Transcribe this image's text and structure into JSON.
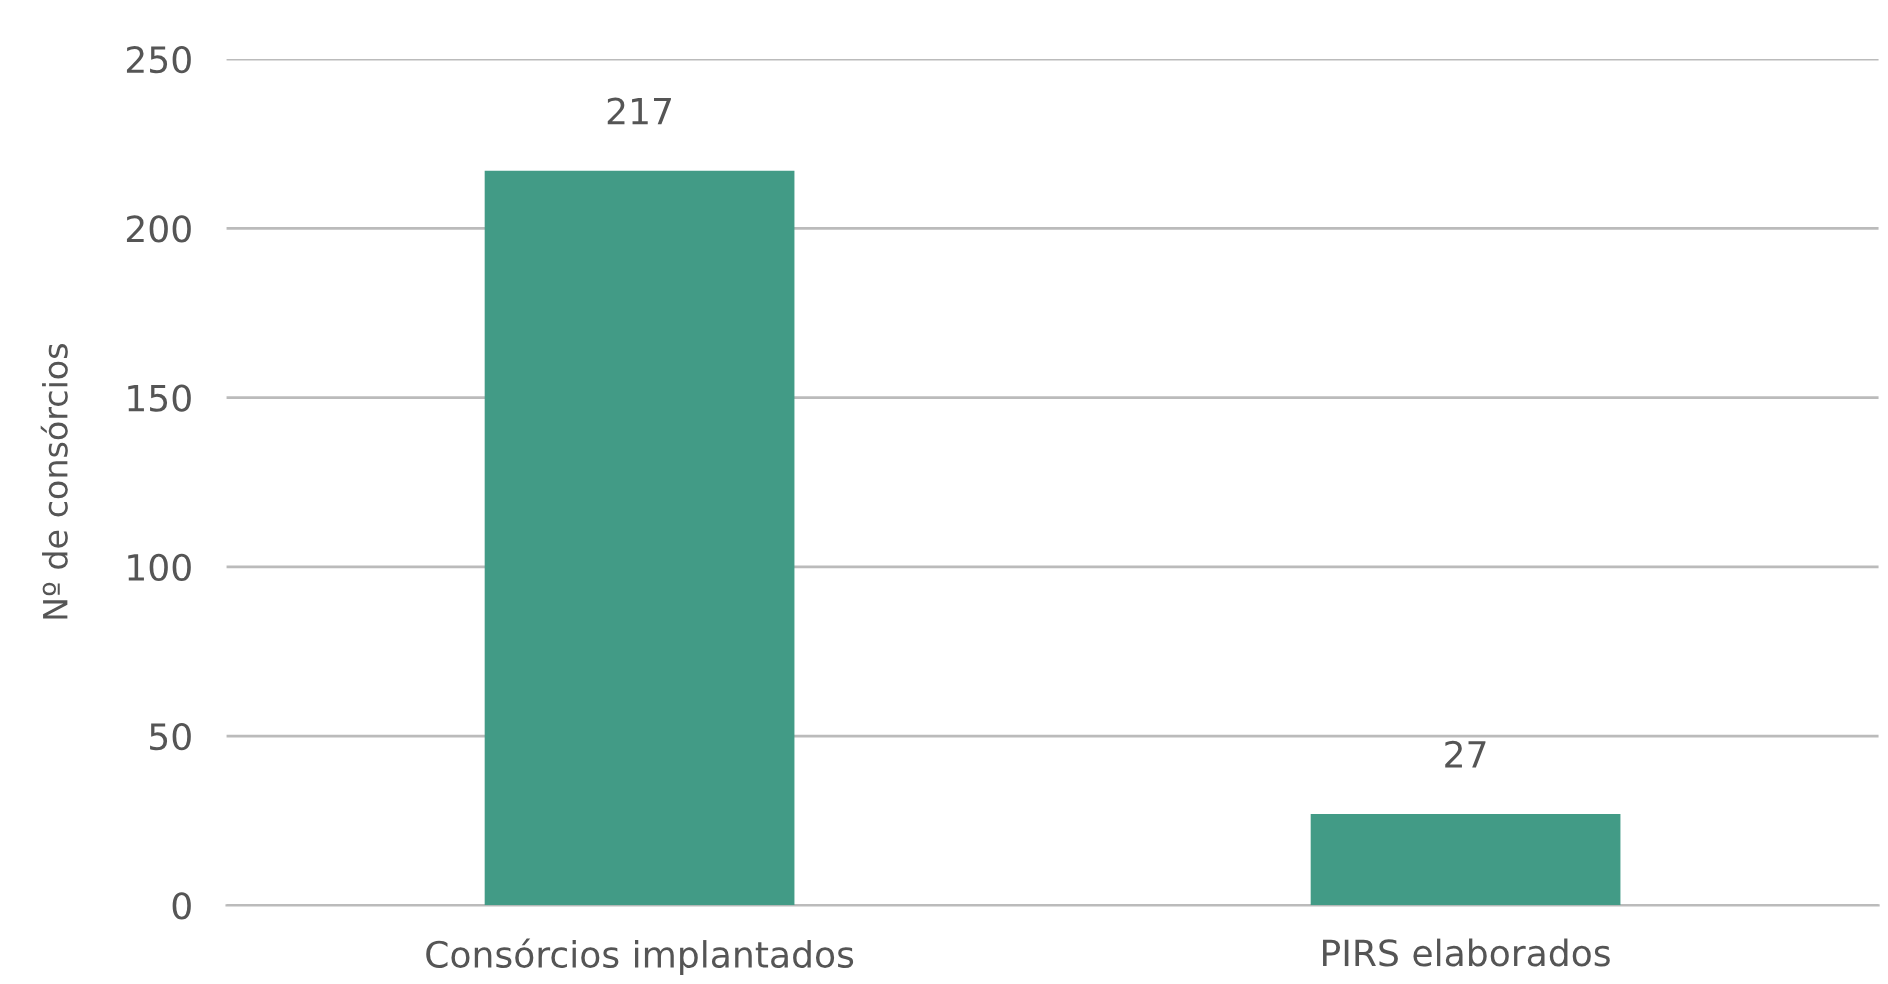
{
  "chart_data": {
    "type": "bar",
    "ylabel": "Nº de consórcios",
    "categories": [
      "Consórcios implantados",
      "PIRS elaborados"
    ],
    "values": [
      217,
      27
    ],
    "color": "#429b86",
    "ylim": [
      0,
      250
    ],
    "yticks": [
      0,
      50,
      100,
      150,
      200,
      250
    ],
    "grid": "y",
    "data_labels": true
  }
}
